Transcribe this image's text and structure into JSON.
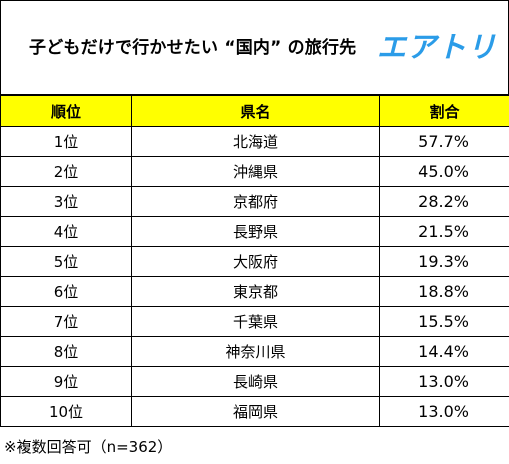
{
  "header": {
    "title": "子どもだけで行かせたい “国内” の旅行先",
    "brand": "エアトリ"
  },
  "table": {
    "columns": [
      "順位",
      "県名",
      "割合"
    ],
    "rows": [
      {
        "rank": "1位",
        "prefecture": "北海道",
        "share": "57.7%"
      },
      {
        "rank": "2位",
        "prefecture": "沖縄県",
        "share": "45.0%"
      },
      {
        "rank": "3位",
        "prefecture": "京都府",
        "share": "28.2%"
      },
      {
        "rank": "4位",
        "prefecture": "長野県",
        "share": "21.5%"
      },
      {
        "rank": "5位",
        "prefecture": "大阪府",
        "share": "19.3%"
      },
      {
        "rank": "6位",
        "prefecture": "東京都",
        "share": "18.8%"
      },
      {
        "rank": "7位",
        "prefecture": "千葉県",
        "share": "15.5%"
      },
      {
        "rank": "8位",
        "prefecture": "神奈川県",
        "share": "14.4%"
      },
      {
        "rank": "9位",
        "prefecture": "長崎県",
        "share": "13.0%"
      },
      {
        "rank": "10位",
        "prefecture": "福岡県",
        "share": "13.0%"
      }
    ]
  },
  "footnote": "※複数回答可（n=362）",
  "colors": {
    "header_fill": "#ffff00",
    "brand": "#2b9ce8",
    "border": "#000000"
  }
}
